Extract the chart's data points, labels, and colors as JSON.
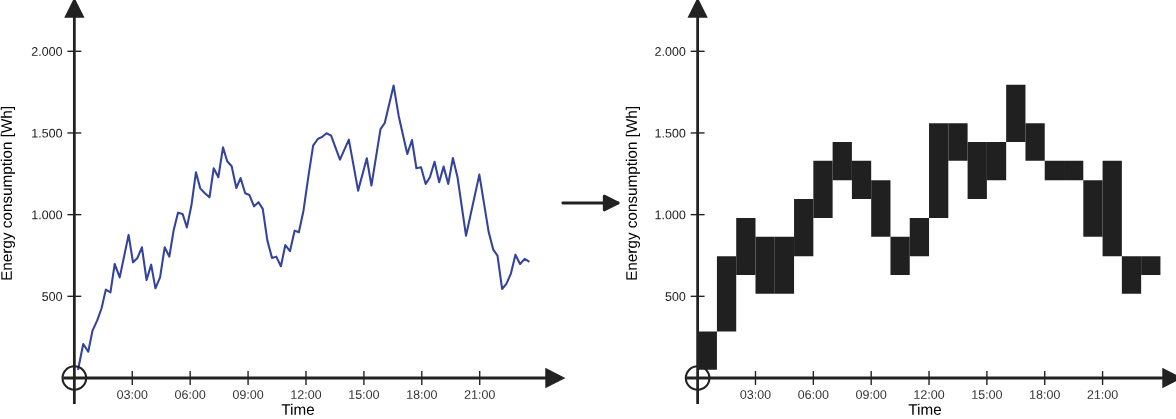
{
  "chart_data": [
    {
      "type": "line",
      "xlabel": "Time",
      "ylabel": "Energy consumption [Wh]",
      "grid": false,
      "marker": "none",
      "xlim": [
        -0.5,
        24.9
      ],
      "ylim": [
        -150,
        2265
      ],
      "xticks": [
        {
          "value": 3,
          "label": "03:00"
        },
        {
          "value": 6,
          "label": "06:00"
        },
        {
          "value": 9,
          "label": "09:00"
        },
        {
          "value": 12,
          "label": "12:00"
        },
        {
          "value": 15,
          "label": "15:00"
        },
        {
          "value": 18,
          "label": "18:00"
        },
        {
          "value": 21,
          "label": "21:00"
        }
      ],
      "yticks": [
        500,
        {
          "value": 1000,
          "label": "1.000"
        },
        {
          "value": 1500,
          "label": "1.500"
        },
        {
          "value": 2000,
          "label": "2.000"
        }
      ],
      "x": [
        0.2,
        0.46,
        0.72,
        0.94,
        1.18,
        1.41,
        1.63,
        1.87,
        2.09,
        2.35,
        2.81,
        3.04,
        3.26,
        3.5,
        3.74,
        3.98,
        4.2,
        4.44,
        4.68,
        4.92,
        5.15,
        5.37,
        5.61,
        5.83,
        6.07,
        6.3,
        6.52,
        6.76,
        7.0,
        7.22,
        7.46,
        7.7,
        7.92,
        8.15,
        8.39,
        8.61,
        8.85,
        9.07,
        9.31,
        9.54,
        9.76,
        10.0,
        10.24,
        10.46,
        10.7,
        10.93,
        11.17,
        11.41,
        11.63,
        11.87,
        12.13,
        12.37,
        12.61,
        12.86,
        13.07,
        13.3,
        13.76,
        14.22,
        14.7,
        15.15,
        15.39,
        15.86,
        16.08,
        16.54,
        16.8,
        17.03,
        17.25,
        17.49,
        17.72,
        17.96,
        18.2,
        18.42,
        18.66,
        18.9,
        19.13,
        19.37,
        19.61,
        19.85,
        20.29,
        20.98,
        21.46,
        21.7,
        21.92,
        22.16,
        22.38,
        22.61,
        22.85,
        23.09,
        23.33,
        23.53
      ],
      "series": [
        {
          "color": "#34449c",
          "values": [
            55,
            208,
            161,
            290,
            351,
            427,
            541,
            524,
            698,
            616,
            876,
            708,
            733,
            800,
            600,
            694,
            549,
            616,
            800,
            743,
            908,
            1012,
            1004,
            922,
            1061,
            1259,
            1161,
            1131,
            1106,
            1284,
            1229,
            1412,
            1327,
            1296,
            1163,
            1224,
            1131,
            1120,
            1051,
            1076,
            1035,
            841,
            735,
            743,
            684,
            814,
            776,
            902,
            892,
            1024,
            1239,
            1422,
            1463,
            1478,
            1498,
            1484,
            1337,
            1459,
            1147,
            1345,
            1178,
            1524,
            1561,
            1790,
            1606,
            1484,
            1371,
            1457,
            1284,
            1290,
            1188,
            1229,
            1324,
            1198,
            1294,
            1188,
            1347,
            1229,
            871,
            1245,
            896,
            786,
            749,
            545,
            576,
            637,
            755,
            698,
            729,
            714
          ]
        }
      ]
    },
    {
      "type": "bar",
      "xlabel": "Time",
      "ylabel": "Energy consumption [Wh]",
      "grid": false,
      "xlim": [
        -0.5,
        24.6
      ],
      "ylim": [
        -150,
        2265
      ],
      "xticks": [
        {
          "value": 3,
          "label": "03:00"
        },
        {
          "value": 6,
          "label": "06:00"
        },
        {
          "value": 9,
          "label": "09:00"
        },
        {
          "value": 12,
          "label": "12:00"
        },
        {
          "value": 15,
          "label": "15:00"
        },
        {
          "value": 18,
          "label": "18:00"
        },
        {
          "value": 21,
          "label": "21:00"
        }
      ],
      "yticks": [
        500,
        {
          "value": 1000,
          "label": "1.000"
        },
        {
          "value": 1500,
          "label": "1.500"
        },
        {
          "value": 2000,
          "label": "2.000"
        }
      ],
      "x": [
        0.5,
        1.5,
        2.5,
        3.5,
        4.5,
        5.5,
        6.5,
        7.5,
        8.5,
        9.5,
        10.5,
        11.5,
        12.5,
        13.5,
        14.5,
        15.5,
        16.5,
        17.5,
        18.5,
        19.5,
        20.5,
        21.5,
        22.5,
        23.5
      ],
      "series": [
        {
          "color": "#202020",
          "base": [
            50,
            285,
            630,
            515,
            515,
            745,
            980,
            1210,
            1095,
            865,
            630,
            745,
            980,
            1330,
            1095,
            1210,
            1445,
            1330,
            1210,
            1210,
            865,
            745,
            515,
            630
          ],
          "values": [
            235,
            460,
            350,
            350,
            350,
            350,
            350,
            235,
            235,
            345,
            235,
            235,
            580,
            230,
            350,
            235,
            350,
            230,
            120,
            120,
            345,
            585,
            230,
            115
          ]
        }
      ]
    }
  ]
}
